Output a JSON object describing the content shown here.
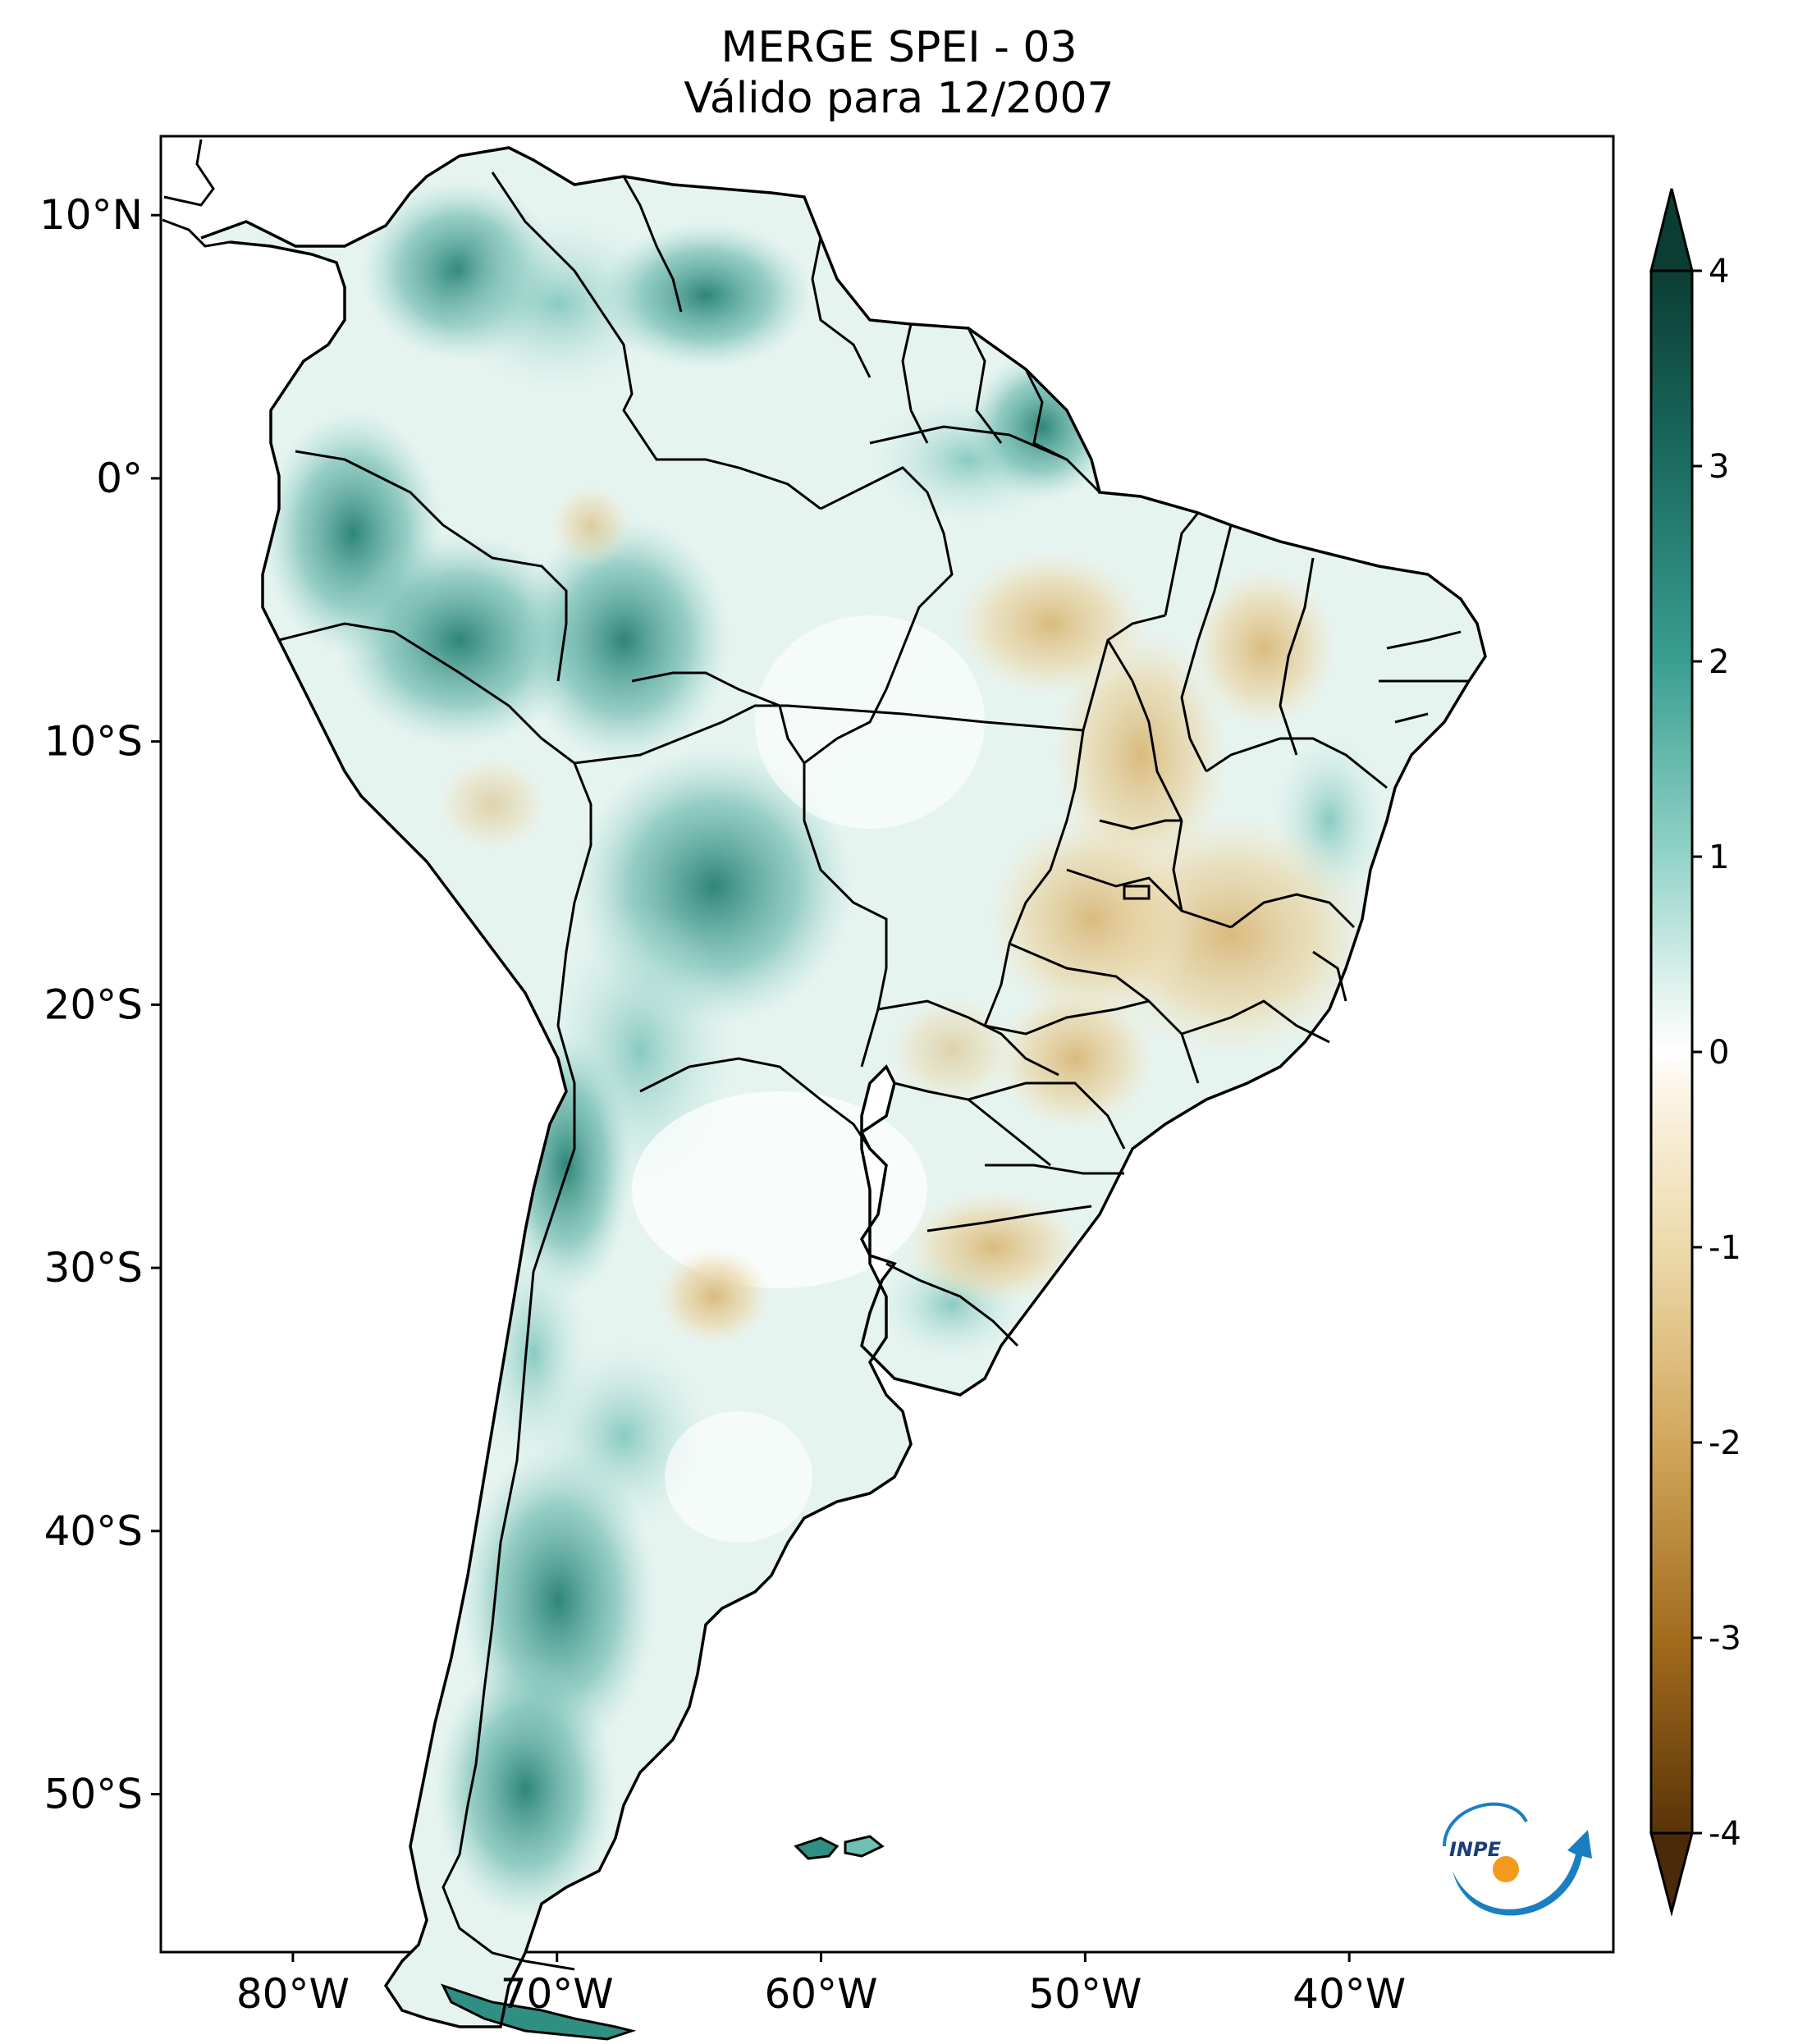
{
  "title": {
    "line1": "MERGE   SPEI - 03",
    "line2": "Válido para 12/2007"
  },
  "map": {
    "lon_range": [
      -85,
      -30
    ],
    "lat_range": [
      -56,
      13
    ],
    "lat_ticks": [
      {
        "value": 10,
        "label": "10°N"
      },
      {
        "value": 0,
        "label": "0°"
      },
      {
        "value": -10,
        "label": "10°S"
      },
      {
        "value": -20,
        "label": "20°S"
      },
      {
        "value": -30,
        "label": "30°S"
      },
      {
        "value": -40,
        "label": "40°S"
      },
      {
        "value": -50,
        "label": "50°S"
      }
    ],
    "lon_ticks": [
      {
        "value": -80,
        "label": "80°W"
      },
      {
        "value": -70,
        "label": "70°W"
      },
      {
        "value": -60,
        "label": "60°W"
      },
      {
        "value": -50,
        "label": "50°W"
      },
      {
        "value": -40,
        "label": "40°W"
      }
    ]
  },
  "colorbar": {
    "range": [
      -4,
      4
    ],
    "extend": "both",
    "ticks": [
      {
        "value": 4,
        "label": "4"
      },
      {
        "value": 3,
        "label": "3"
      },
      {
        "value": 2,
        "label": "2"
      },
      {
        "value": 1,
        "label": "1"
      },
      {
        "value": 0,
        "label": "0"
      },
      {
        "value": -1,
        "label": "-1"
      },
      {
        "value": -2,
        "label": "-2"
      },
      {
        "value": -3,
        "label": "-3"
      },
      {
        "value": -4,
        "label": "-4"
      }
    ],
    "colors": {
      "extreme_wet": "#0b3d33",
      "wet": "#2f8f83",
      "moist": "#8fd1c6",
      "neutral": "#ffffff",
      "dry": "#ecd8a8",
      "very_dry": "#c48e3a",
      "extreme_dry": "#4a2a08"
    }
  },
  "logo": {
    "text": "INPE",
    "blue": "#1a7fc0",
    "orange": "#f39a1e"
  }
}
